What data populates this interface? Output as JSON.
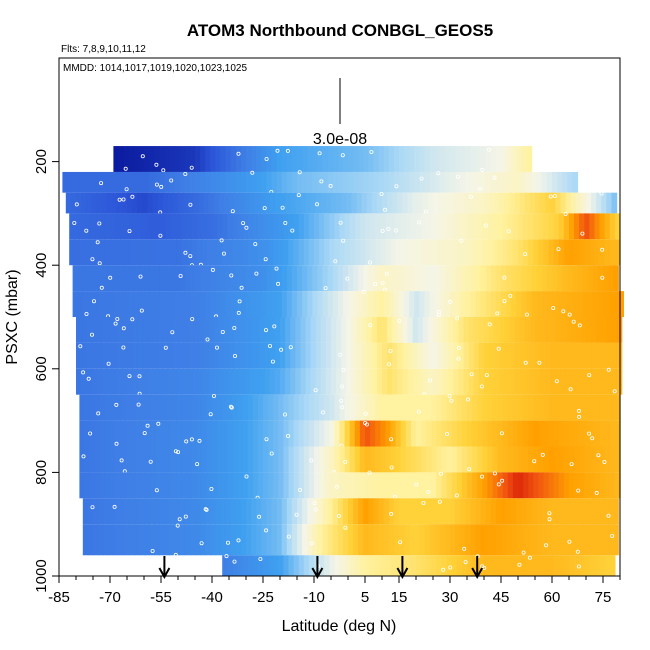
{
  "chart_data": {
    "type": "heatmap",
    "title": "ATOM3 Northbound CONBGL_GEOS5",
    "flights_label": "Flts: 7,8,9,10,11,12",
    "dates_label": "MMDD: 1014,1017,1019,1020,1023,1025",
    "xlabel": "Latitude (deg N)",
    "ylabel": "PSXC (mbar)",
    "xlim": [
      -85,
      80
    ],
    "ylim": [
      1000,
      0
    ],
    "x_ticks": [
      "-85",
      "-70",
      "-55",
      "-40",
      "-25",
      "-10",
      "5",
      "15",
      "30",
      "45",
      "60",
      "75"
    ],
    "y_ticks": [
      "200",
      "400",
      "600",
      "800",
      "1000"
    ],
    "scale_label": "3.0e-08",
    "colormap": [
      "#0a1a9e",
      "#2c55d8",
      "#3f7fe6",
      "#3fa0f0",
      "#a9d8f6",
      "#f5f5e8",
      "#fff2a0",
      "#ffd23a",
      "#ffa000",
      "#f05010",
      "#c80000"
    ],
    "value_range": [
      0,
      10
    ],
    "arrow_latitudes": [
      -54,
      -9,
      16,
      38
    ],
    "levels": [
      {
        "p_top": 170,
        "p_bot": 220,
        "lat_start": -69,
        "lat_end": 53,
        "knots": [
          [
            -69,
            0
          ],
          [
            -45,
            0.5
          ],
          [
            -20,
            3
          ],
          [
            5,
            3.5
          ],
          [
            25,
            4.5
          ],
          [
            45,
            5
          ],
          [
            53,
            6
          ]
        ]
      },
      {
        "p_top": 220,
        "p_bot": 260,
        "lat_start": -84,
        "lat_end": 67,
        "knots": [
          [
            -84,
            1.5
          ],
          [
            -60,
            1.5
          ],
          [
            -35,
            2.5
          ],
          [
            -15,
            3.5
          ],
          [
            10,
            4
          ],
          [
            30,
            4.8
          ],
          [
            50,
            5.5
          ],
          [
            67,
            4
          ]
        ]
      },
      {
        "p_top": 260,
        "p_bot": 300,
        "lat_start": -83,
        "lat_end": 79,
        "knots": [
          [
            -83,
            1.5
          ],
          [
            -60,
            0.8
          ],
          [
            -45,
            1.5
          ],
          [
            -20,
            3
          ],
          [
            0,
            3.5
          ],
          [
            20,
            4.8
          ],
          [
            40,
            5.5
          ],
          [
            60,
            7
          ],
          [
            79,
            3.5
          ]
        ]
      },
      {
        "p_top": 300,
        "p_bot": 350,
        "lat_start": -82,
        "lat_end": 79,
        "knots": [
          [
            -82,
            1.5
          ],
          [
            -55,
            1.2
          ],
          [
            -40,
            1.6
          ],
          [
            -15,
            3
          ],
          [
            5,
            4.5
          ],
          [
            25,
            5
          ],
          [
            45,
            6
          ],
          [
            62,
            7
          ],
          [
            70,
            9
          ],
          [
            79,
            7
          ]
        ]
      },
      {
        "p_top": 350,
        "p_bot": 400,
        "lat_start": -82,
        "lat_end": 79,
        "knots": [
          [
            -82,
            1.6
          ],
          [
            -50,
            1.7
          ],
          [
            -25,
            2.5
          ],
          [
            -5,
            4
          ],
          [
            15,
            5
          ],
          [
            35,
            5.5
          ],
          [
            50,
            6.5
          ],
          [
            65,
            8
          ],
          [
            79,
            7.5
          ]
        ]
      },
      {
        "p_top": 400,
        "p_bot": 450,
        "lat_start": -81,
        "lat_end": 79,
        "knots": [
          [
            -81,
            1.8
          ],
          [
            -50,
            1.8
          ],
          [
            -25,
            2.5
          ],
          [
            -5,
            4
          ],
          [
            10,
            5.5
          ],
          [
            25,
            5
          ],
          [
            45,
            6.5
          ],
          [
            65,
            7.5
          ],
          [
            79,
            8
          ]
        ]
      },
      {
        "p_top": 450,
        "p_bot": 500,
        "lat_start": -81,
        "lat_end": 80,
        "knots": [
          [
            -81,
            1.8
          ],
          [
            -45,
            2
          ],
          [
            -20,
            3
          ],
          [
            0,
            5
          ],
          [
            10,
            6
          ],
          [
            20,
            4.5
          ],
          [
            35,
            6
          ],
          [
            55,
            7.5
          ],
          [
            80,
            8
          ]
        ]
      },
      {
        "p_top": 500,
        "p_bot": 550,
        "lat_start": -80,
        "lat_end": 80,
        "knots": [
          [
            -80,
            1.8
          ],
          [
            -45,
            2
          ],
          [
            -20,
            3
          ],
          [
            0,
            5
          ],
          [
            10,
            6.5
          ],
          [
            20,
            4.5
          ],
          [
            35,
            6.5
          ],
          [
            55,
            7.5
          ],
          [
            80,
            8
          ]
        ]
      },
      {
        "p_top": 550,
        "p_bot": 600,
        "lat_start": -80,
        "lat_end": 80,
        "knots": [
          [
            -80,
            1.8
          ],
          [
            -45,
            2
          ],
          [
            -20,
            3
          ],
          [
            0,
            5
          ],
          [
            12,
            6.5
          ],
          [
            25,
            5
          ],
          [
            40,
            7
          ],
          [
            60,
            7.5
          ],
          [
            80,
            7.5
          ]
        ]
      },
      {
        "p_top": 600,
        "p_bot": 650,
        "lat_start": -80,
        "lat_end": 80,
        "knots": [
          [
            -80,
            1.8
          ],
          [
            -45,
            2.2
          ],
          [
            -20,
            3.2
          ],
          [
            0,
            5
          ],
          [
            12,
            6.5
          ],
          [
            25,
            5.5
          ],
          [
            40,
            7
          ],
          [
            60,
            7.5
          ],
          [
            80,
            7.5
          ]
        ]
      },
      {
        "p_top": 650,
        "p_bot": 700,
        "lat_start": -79,
        "lat_end": 80,
        "knots": [
          [
            -79,
            1.8
          ],
          [
            -45,
            2.2
          ],
          [
            -20,
            3.5
          ],
          [
            -5,
            4.5
          ],
          [
            10,
            6
          ],
          [
            25,
            6
          ],
          [
            40,
            7
          ],
          [
            60,
            7.5
          ],
          [
            80,
            7.5
          ]
        ]
      },
      {
        "p_top": 700,
        "p_bot": 750,
        "lat_start": -79,
        "lat_end": 80,
        "knots": [
          [
            -79,
            1.8
          ],
          [
            -45,
            2.3
          ],
          [
            -20,
            3.5
          ],
          [
            -5,
            5
          ],
          [
            5,
            9
          ],
          [
            12,
            8
          ],
          [
            20,
            6
          ],
          [
            35,
            7
          ],
          [
            55,
            8
          ],
          [
            80,
            7.5
          ]
        ]
      },
      {
        "p_top": 750,
        "p_bot": 800,
        "lat_start": -79,
        "lat_end": 80,
        "knots": [
          [
            -79,
            1.8
          ],
          [
            -45,
            2.3
          ],
          [
            -20,
            3.5
          ],
          [
            -5,
            5.5
          ],
          [
            5,
            7.5
          ],
          [
            15,
            7
          ],
          [
            30,
            6
          ],
          [
            45,
            7.5
          ],
          [
            60,
            8
          ],
          [
            80,
            7.5
          ]
        ]
      },
      {
        "p_top": 800,
        "p_bot": 850,
        "lat_start": -79,
        "lat_end": 80,
        "knots": [
          [
            -79,
            1.8
          ],
          [
            -45,
            2.3
          ],
          [
            -20,
            3.5
          ],
          [
            -5,
            5.5
          ],
          [
            10,
            6
          ],
          [
            25,
            6
          ],
          [
            40,
            8
          ],
          [
            50,
            9.5
          ],
          [
            65,
            8
          ],
          [
            80,
            7.5
          ]
        ]
      },
      {
        "p_top": 850,
        "p_bot": 900,
        "lat_start": -78,
        "lat_end": 79,
        "knots": [
          [
            -78,
            1.8
          ],
          [
            -45,
            2.3
          ],
          [
            -20,
            3.5
          ],
          [
            -8,
            5.5
          ],
          [
            5,
            8
          ],
          [
            15,
            7
          ],
          [
            30,
            7
          ],
          [
            45,
            8
          ],
          [
            60,
            7.5
          ],
          [
            79,
            7.5
          ]
        ]
      },
      {
        "p_top": 900,
        "p_bot": 960,
        "lat_start": -78,
        "lat_end": 79,
        "knots": [
          [
            -78,
            1.8
          ],
          [
            -45,
            2.3
          ],
          [
            -20,
            3.5
          ],
          [
            -8,
            6
          ],
          [
            5,
            7.5
          ],
          [
            20,
            7
          ],
          [
            40,
            8
          ],
          [
            60,
            7.5
          ],
          [
            79,
            7.5
          ]
        ]
      },
      {
        "p_top": 960,
        "p_bot": 1010,
        "lat_start": -37,
        "lat_end": 78,
        "knots": [
          [
            -37,
            2
          ],
          [
            -20,
            3
          ],
          [
            -8,
            4.5
          ],
          [
            5,
            6
          ],
          [
            20,
            6.5
          ],
          [
            40,
            7.5
          ],
          [
            60,
            7.5
          ],
          [
            78,
            7
          ]
        ]
      }
    ]
  }
}
